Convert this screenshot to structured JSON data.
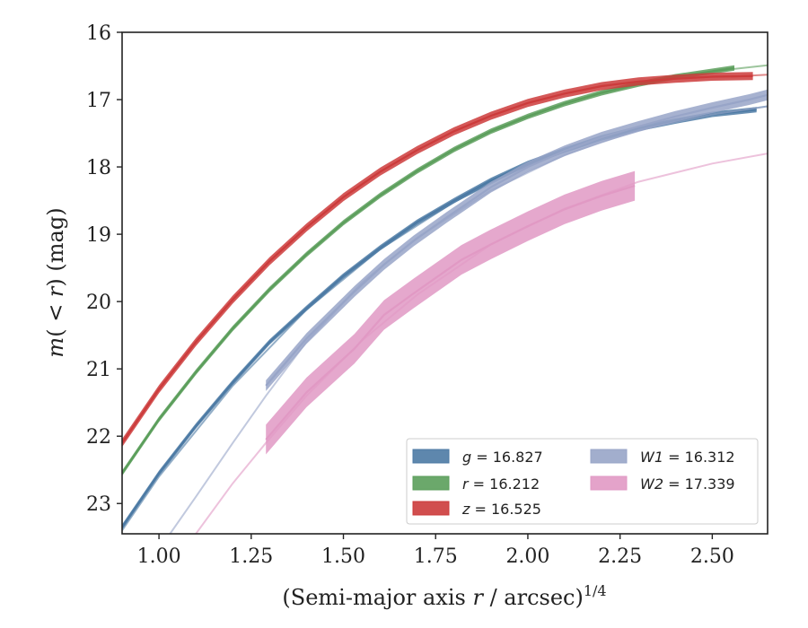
{
  "chart_data": {
    "type": "line",
    "title": "",
    "xlabel": "(Semi-major axis r / arcsec)",
    "xlabel_parts": {
      "prefix": "(Semi-major axis ",
      "var": "r",
      "suffix": " / arcsec)",
      "exponent": "1/4"
    },
    "ylabel": "m(< r) (mag)",
    "ylabel_parts": {
      "m": "m",
      "open": "( < ",
      "r": "r",
      "close": ") (mag)"
    },
    "xlim": [
      0.9,
      2.65
    ],
    "ylim": [
      16,
      23.45
    ],
    "y_inverted": true,
    "x_ticks": [
      1.0,
      1.25,
      1.5,
      1.75,
      2.0,
      2.25,
      2.5
    ],
    "x_tick_labels": [
      "1.00",
      "1.25",
      "1.50",
      "1.75",
      "2.00",
      "2.25",
      "2.50"
    ],
    "y_ticks": [
      16,
      17,
      18,
      19,
      20,
      21,
      22,
      23
    ],
    "y_tick_labels": [
      "16",
      "17",
      "18",
      "19",
      "20",
      "21",
      "22",
      "23"
    ],
    "grid": false,
    "legend_position": "lower-right",
    "legend_columns": 2,
    "series": [
      {
        "name": "g",
        "legend_label": "g = 16.827",
        "band": "g",
        "total": "16.827",
        "color": "#4c7aa4",
        "band_width": 0.04,
        "measured": {
          "x": [
            0.9,
            1.0,
            1.1,
            1.2,
            1.3,
            1.4,
            1.5,
            1.6,
            1.7,
            1.8,
            1.9,
            2.0,
            2.1,
            2.2,
            2.3,
            2.4,
            2.5,
            2.62
          ],
          "y": [
            23.35,
            22.55,
            21.85,
            21.2,
            20.6,
            20.1,
            19.62,
            19.2,
            18.82,
            18.5,
            18.2,
            17.95,
            17.75,
            17.57,
            17.43,
            17.32,
            17.22,
            17.15
          ]
        },
        "model": {
          "x": [
            0.9,
            1.0,
            1.2,
            1.4,
            1.6,
            1.8,
            2.0,
            2.2,
            2.4,
            2.65
          ],
          "y": [
            23.4,
            22.6,
            21.25,
            20.12,
            19.22,
            18.52,
            17.97,
            17.57,
            17.3,
            17.1
          ]
        }
      },
      {
        "name": "r",
        "legend_label": "r = 16.212",
        "band": "r",
        "total": "16.212",
        "color": "#5b9e5b",
        "band_width": 0.04,
        "measured": {
          "x": [
            0.9,
            1.0,
            1.1,
            1.2,
            1.3,
            1.4,
            1.5,
            1.6,
            1.7,
            1.8,
            1.9,
            2.0,
            2.1,
            2.2,
            2.3,
            2.4,
            2.56
          ],
          "y": [
            22.55,
            21.75,
            21.05,
            20.4,
            19.82,
            19.3,
            18.83,
            18.42,
            18.06,
            17.74,
            17.47,
            17.25,
            17.06,
            16.9,
            16.77,
            16.66,
            16.53
          ]
        },
        "model": {
          "x": [
            2.5,
            2.65
          ],
          "y": [
            16.58,
            16.49
          ]
        }
      },
      {
        "name": "z",
        "legend_label": "z = 16.525",
        "band": "z",
        "total": "16.525",
        "color": "#cc3b3b",
        "band_width": 0.06,
        "measured": {
          "x": [
            0.9,
            1.0,
            1.1,
            1.2,
            1.3,
            1.4,
            1.5,
            1.6,
            1.7,
            1.8,
            1.9,
            2.0,
            2.1,
            2.2,
            2.3,
            2.4,
            2.5,
            2.61
          ],
          "y": [
            22.1,
            21.3,
            20.6,
            19.97,
            19.4,
            18.9,
            18.45,
            18.07,
            17.75,
            17.47,
            17.24,
            17.05,
            16.91,
            16.8,
            16.73,
            16.69,
            16.66,
            16.65
          ]
        },
        "model": {
          "x": [
            2.55,
            2.65
          ],
          "y": [
            16.66,
            16.63
          ]
        }
      },
      {
        "name": "W1",
        "legend_label": "W1 = 16.312",
        "band": "W1",
        "total": "16.312",
        "color": "#98a5c8",
        "band_width": 0.08,
        "measured": {
          "x": [
            1.29,
            1.4,
            1.53,
            1.61,
            1.69,
            1.78,
            1.82,
            1.9,
            2.0,
            2.1,
            2.2,
            2.3,
            2.4,
            2.5,
            2.6,
            2.65
          ],
          "y": [
            21.25,
            20.55,
            19.85,
            19.45,
            19.1,
            18.75,
            18.6,
            18.3,
            18.0,
            17.76,
            17.56,
            17.4,
            17.25,
            17.12,
            17.0,
            16.93
          ]
        },
        "model": {
          "x": [
            1.03,
            1.1,
            1.2,
            1.29,
            1.4,
            1.55,
            1.7,
            1.9,
            2.1,
            2.3,
            2.5,
            2.65
          ],
          "y": [
            23.45,
            22.9,
            22.1,
            21.4,
            20.6,
            19.72,
            19.05,
            18.35,
            17.82,
            17.45,
            17.22,
            17.1
          ]
        }
      },
      {
        "name": "W2",
        "legend_label": "W2 = 17.339",
        "band": "W2",
        "total": "17.339",
        "color": "#e199c4",
        "band_width": 0.22,
        "measured": {
          "x": [
            1.29,
            1.4,
            1.53,
            1.61,
            1.69,
            1.82,
            1.9,
            2.0,
            2.1,
            2.2,
            2.29
          ],
          "y": [
            22.05,
            21.35,
            20.7,
            20.2,
            19.88,
            19.38,
            19.15,
            18.88,
            18.63,
            18.43,
            18.28
          ]
        },
        "model": {
          "x": [
            1.1,
            1.2,
            1.29,
            1.4,
            1.55,
            1.7,
            1.9,
            2.1,
            2.3,
            2.5,
            2.65
          ],
          "y": [
            23.45,
            22.7,
            22.1,
            21.4,
            20.58,
            19.9,
            19.15,
            18.62,
            18.22,
            17.95,
            17.8
          ]
        }
      }
    ]
  }
}
